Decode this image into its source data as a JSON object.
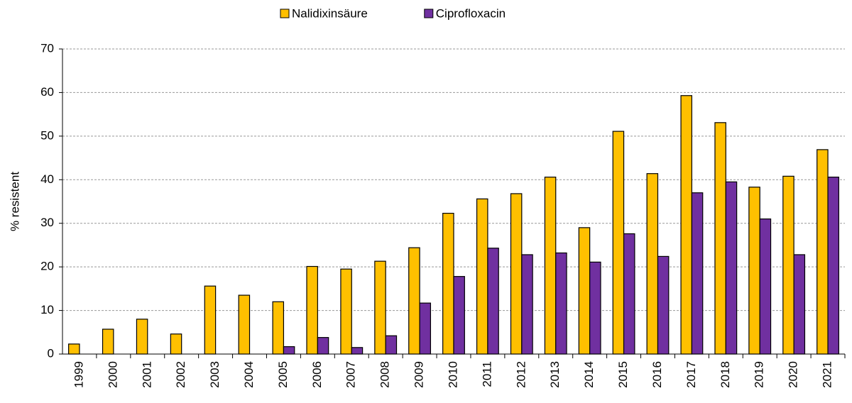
{
  "chart_data": {
    "type": "bar",
    "categories": [
      "1999",
      "2000",
      "2001",
      "2002",
      "2003",
      "2004",
      "2005",
      "2006",
      "2007",
      "2008",
      "2009",
      "2010",
      "2011",
      "2012",
      "2013",
      "2014",
      "2015",
      "2016",
      "2017",
      "2018",
      "2019",
      "2020",
      "2021"
    ],
    "series": [
      {
        "name": "Nalidixinsäure",
        "color": "#FFC000",
        "values": [
          2.3,
          5.7,
          8.0,
          4.6,
          15.6,
          13.5,
          12.0,
          20.1,
          19.5,
          21.3,
          24.4,
          32.3,
          35.6,
          36.8,
          40.6,
          29.0,
          51.1,
          41.4,
          59.3,
          53.1,
          38.3,
          40.8,
          46.9
        ]
      },
      {
        "name": "Ciprofloxacin",
        "color": "#7030A0",
        "values": [
          null,
          null,
          null,
          null,
          null,
          null,
          1.7,
          3.8,
          1.5,
          4.2,
          11.7,
          17.8,
          24.3,
          22.8,
          23.2,
          21.1,
          27.6,
          22.4,
          37.0,
          39.5,
          31.0,
          22.8,
          40.6
        ]
      }
    ],
    "y_label": "% resistent",
    "ylim": [
      0,
      70
    ],
    "yticks": [
      0,
      10,
      20,
      30,
      40,
      50,
      60,
      70
    ],
    "grid": true,
    "legend": "top"
  }
}
